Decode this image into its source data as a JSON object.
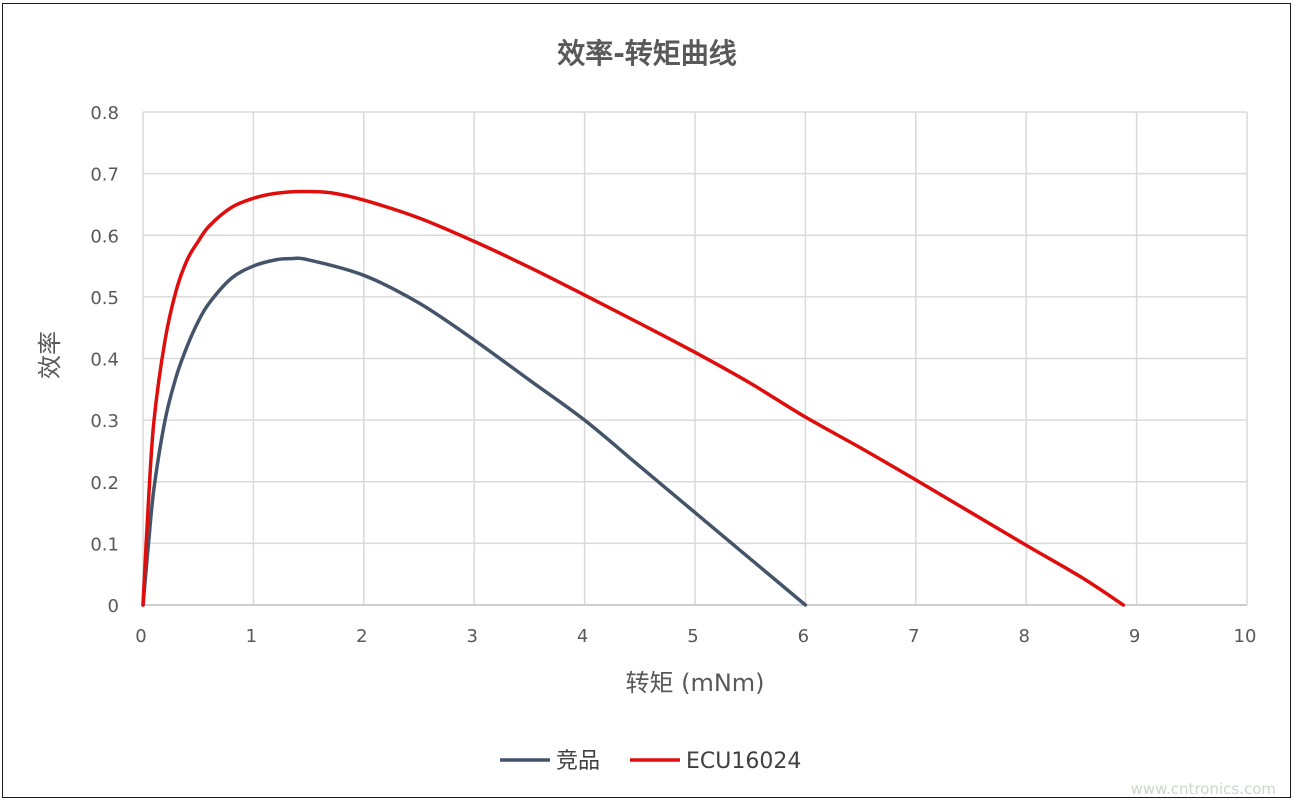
{
  "chart_data": {
    "type": "line",
    "title": "效率-转矩曲线",
    "xlabel": "转矩 (mNm)",
    "ylabel": "效率",
    "xlim": [
      0,
      10
    ],
    "ylim": [
      0,
      0.8
    ],
    "x_ticks": [
      "0",
      "1",
      "2",
      "3",
      "4",
      "5",
      "6",
      "7",
      "8",
      "9",
      "10"
    ],
    "y_ticks": [
      "0",
      "0.1",
      "0.2",
      "0.3",
      "0.4",
      "0.5",
      "0.6",
      "0.7",
      "0.8"
    ],
    "grid": true,
    "legend_position": "bottom",
    "series": [
      {
        "name": "竞品",
        "color": "#44546a",
        "x": [
          0,
          0.05,
          0.1,
          0.2,
          0.3,
          0.4,
          0.5,
          0.6,
          0.8,
          1.0,
          1.2,
          1.33,
          1.5,
          2.0,
          2.5,
          3.0,
          3.5,
          4.0,
          4.5,
          5.0,
          5.5,
          6.0
        ],
        "y": [
          0,
          0.1,
          0.19,
          0.3,
          0.37,
          0.42,
          0.46,
          0.49,
          0.53,
          0.55,
          0.56,
          0.562,
          0.56,
          0.535,
          0.49,
          0.43,
          0.365,
          0.3,
          0.225,
          0.15,
          0.075,
          0
        ]
      },
      {
        "name": "ECU16024",
        "color": "#e00d0d",
        "x": [
          0,
          0.05,
          0.1,
          0.2,
          0.3,
          0.4,
          0.5,
          0.6,
          0.8,
          1.0,
          1.2,
          1.45,
          1.7,
          2.0,
          2.5,
          3.0,
          3.5,
          4.0,
          4.5,
          5.0,
          5.5,
          6.0,
          6.5,
          7.0,
          7.5,
          8.0,
          8.5,
          8.88
        ],
        "y": [
          0,
          0.17,
          0.3,
          0.43,
          0.51,
          0.56,
          0.59,
          0.615,
          0.645,
          0.66,
          0.668,
          0.671,
          0.669,
          0.657,
          0.628,
          0.59,
          0.548,
          0.503,
          0.457,
          0.41,
          0.36,
          0.305,
          0.255,
          0.203,
          0.15,
          0.097,
          0.045,
          0
        ]
      }
    ]
  },
  "watermark": "www.cntronics.com"
}
